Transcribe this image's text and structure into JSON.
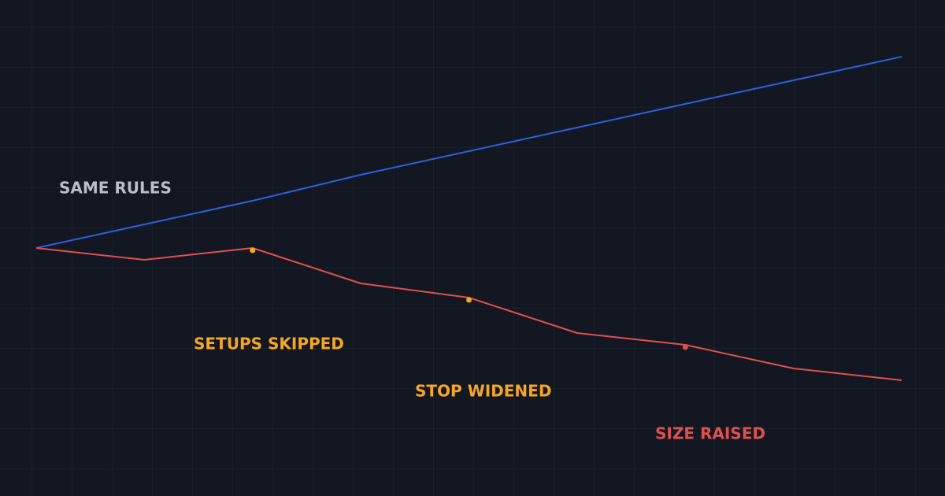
{
  "chart_data": {
    "type": "line",
    "x": [
      0,
      1,
      2,
      3,
      4,
      5,
      6,
      7,
      8
    ],
    "xlim": [
      0,
      8
    ],
    "ylim": [
      -5,
      205
    ],
    "series": [
      {
        "name": "SAME RULES",
        "color": "#2f5fe0",
        "label_color": "#b9bec8",
        "values": [
          100,
          110,
          120,
          131,
          141,
          151,
          161,
          171,
          181
        ]
      },
      {
        "color": "#e0504f",
        "values": [
          100,
          95,
          100,
          85,
          79,
          64,
          59,
          49,
          44
        ]
      }
    ],
    "annotations": [
      {
        "text": "SETUPS SKIPPED",
        "color": "#f5a623"
      },
      {
        "text": "STOP WIDENED",
        "color": "#f5a623"
      },
      {
        "text": "SIZE RAISED",
        "color": "#e0504f"
      }
    ]
  }
}
